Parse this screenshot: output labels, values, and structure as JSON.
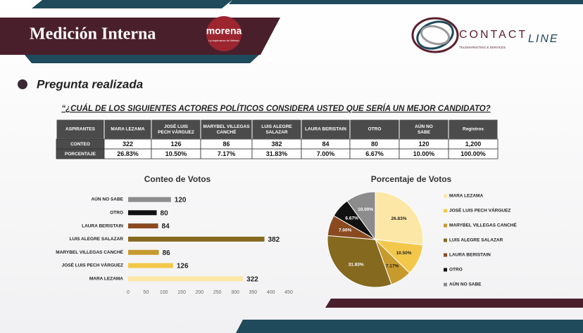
{
  "header": {
    "title": "Medición Interna",
    "party": "morena",
    "party_tagline": "La esperanza de México",
    "brand_a": "CONTACT",
    "brand_b": "LINE",
    "brand_tagline": "TELEMARKETING & SERVICES"
  },
  "section": "Pregunta realizada",
  "question": "“¿CUÁL DE LOS SIGUIENTES ACTORES POLÍTICOS CONSIDERA USTED QUE SERÍA UN MEJOR CANDIDATO?",
  "table": {
    "header": [
      "ASPIRANTES",
      "MARA LEZAMA",
      "JOSÉ LUIS PECH VÁRGUEZ",
      "MARYBEL VILLEGAS CANCHÉ",
      "LUIS ALEGRE SALAZAR",
      "LAURA BERISTAIN",
      "OTRO",
      "AÚN NO SABE",
      "Registros"
    ],
    "rows": [
      [
        "CONTEO",
        "322",
        "126",
        "86",
        "382",
        "84",
        "80",
        "120",
        "1,200"
      ],
      [
        "PORCENTAJE",
        "26.83%",
        "10.50%",
        "7.17%",
        "31.83%",
        "7.00%",
        "6.67%",
        "10.00%",
        "100.00%"
      ]
    ]
  },
  "chart_data": [
    {
      "type": "bar",
      "horizontal": true,
      "title": "Conteo de Votos",
      "categories": [
        "MARA LEZAMA",
        "JOSÉ LUIS PECH VÁRGUEZ",
        "MARYBEL VILLEGAS CANCHÉ",
        "LUIS ALEGRE SALAZAR",
        "LAURA BERISTAIN",
        "OTRO",
        "AÚN NO SABE"
      ],
      "values": [
        322,
        126,
        86,
        382,
        84,
        80,
        120
      ],
      "colors": [
        "#fde7a6",
        "#f3c84a",
        "#c79a2e",
        "#85691f",
        "#8a4a20",
        "#111111",
        "#8c8c8c"
      ],
      "xlim": [
        0,
        450
      ],
      "xticks": [
        0,
        50,
        100,
        150,
        200,
        250,
        300,
        350,
        400,
        450
      ],
      "grid": false
    },
    {
      "type": "pie",
      "title": "Porcentaje de Votos",
      "categories": [
        "MARA LEZAMA",
        "JOSÉ LUIS PECH VÁRGUEZ",
        "MARYBEL VILLEGAS CANCHÉ",
        "LUIS ALEGRE SALAZAR",
        "LAURA BERISTAIN",
        "OTRO",
        "AÚN NO SABE"
      ],
      "values": [
        26.83,
        10.5,
        7.17,
        31.83,
        7.0,
        6.67,
        10.0
      ],
      "value_labels": [
        "26.83%",
        "10.50%",
        "7.17%",
        "31.83%",
        "7.00%",
        "6.67%",
        "10.00%"
      ],
      "colors": [
        "#fde7a6",
        "#f3c84a",
        "#c79a2e",
        "#85691f",
        "#8a4a20",
        "#111111",
        "#8c8c8c"
      ],
      "legend": "right"
    }
  ]
}
